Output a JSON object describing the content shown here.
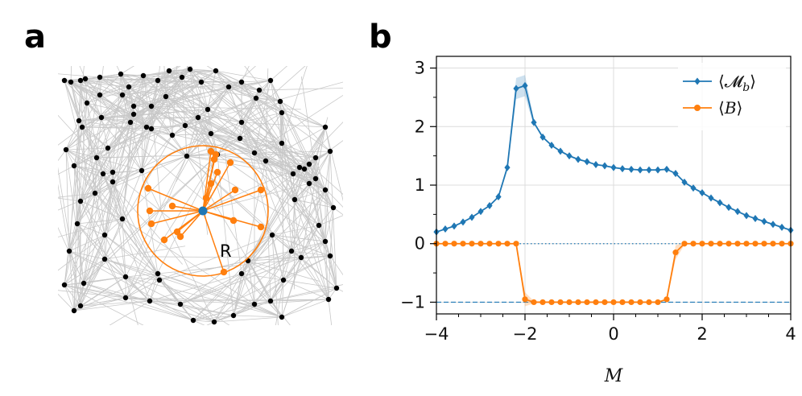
{
  "panels": {
    "a_label": "a",
    "b_label": "b"
  },
  "network": {
    "radius_label": "R",
    "edge_color": "#c8c8c8",
    "node_color": "#000000",
    "focus_color": "#1f77b4",
    "neighbor_color": "#ff7f0e"
  },
  "chart_data": {
    "type": "line",
    "xlabel": "M",
    "ylabel": "",
    "xlim": [
      -4,
      4
    ],
    "ylim": [
      -1.2,
      3.2
    ],
    "xticks": [
      -4,
      -2,
      0,
      2,
      4
    ],
    "xtick_labels": [
      "−4",
      "−2",
      "0",
      "2",
      "4"
    ],
    "yticks": [
      -1,
      0,
      1,
      2,
      3
    ],
    "ytick_labels": [
      "−1",
      "0",
      "1",
      "2",
      "3"
    ],
    "grid": true,
    "legend_position": "top-right",
    "reference_lines": [
      {
        "y": 0,
        "style": "dotted",
        "color": "#1f77b4"
      },
      {
        "y": -1,
        "style": "dashed",
        "color": "#1f77b4"
      }
    ],
    "x": [
      -4.0,
      -3.8,
      -3.6,
      -3.4,
      -3.2,
      -3.0,
      -2.8,
      -2.6,
      -2.4,
      -2.2,
      -2.0,
      -1.8,
      -1.6,
      -1.4,
      -1.2,
      -1.0,
      -0.8,
      -0.6,
      -0.4,
      -0.2,
      0.0,
      0.2,
      0.4,
      0.6,
      0.8,
      1.0,
      1.2,
      1.4,
      1.6,
      1.8,
      2.0,
      2.2,
      2.4,
      2.6,
      2.8,
      3.0,
      3.2,
      3.4,
      3.6,
      3.8,
      4.0
    ],
    "series": [
      {
        "name": "⟨𝓜",
        "name_sub": "b",
        "name_close": "⟩",
        "color": "#1f77b4",
        "marker": "diamond",
        "values": [
          0.2,
          0.25,
          0.3,
          0.37,
          0.45,
          0.55,
          0.65,
          0.8,
          1.3,
          2.65,
          2.7,
          2.07,
          1.82,
          1.68,
          1.58,
          1.5,
          1.44,
          1.4,
          1.35,
          1.33,
          1.3,
          1.28,
          1.27,
          1.26,
          1.26,
          1.26,
          1.27,
          1.2,
          1.05,
          0.95,
          0.87,
          0.78,
          0.7,
          0.62,
          0.55,
          0.48,
          0.43,
          0.38,
          0.33,
          0.28,
          0.23
        ]
      },
      {
        "name": "⟨",
        "name_italic": "B",
        "name_close": "⟩",
        "color": "#ff7f0e",
        "marker": "circle",
        "values": [
          0,
          0,
          0,
          0,
          0,
          0,
          0,
          0,
          0,
          0,
          -0.95,
          -1,
          -1,
          -1,
          -1,
          -1,
          -1,
          -1,
          -1,
          -1,
          -1,
          -1,
          -1,
          -1,
          -1,
          -1,
          -0.95,
          -0.15,
          0,
          0,
          0,
          0,
          0,
          0,
          0,
          0,
          0,
          0,
          0,
          0,
          0
        ]
      }
    ]
  }
}
